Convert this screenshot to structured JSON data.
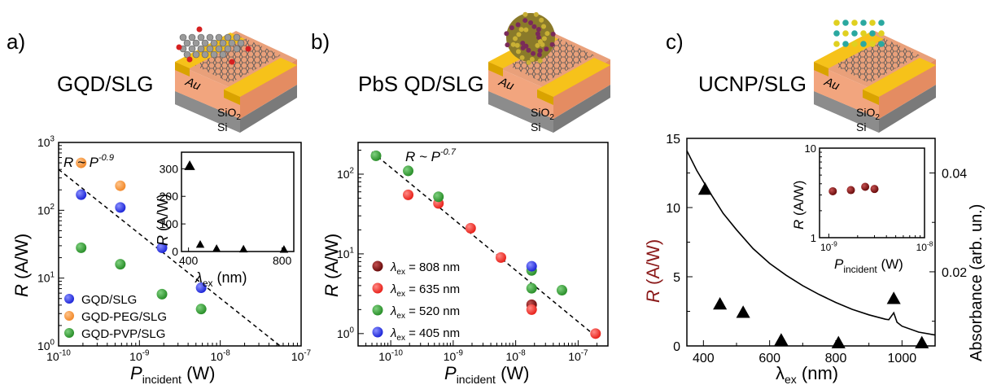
{
  "panels": [
    {
      "letter": "a)",
      "title": "GQD/SLG"
    },
    {
      "letter": "b)",
      "title": "PbS QD/SLG"
    },
    {
      "letter": "c)",
      "title": "UCNP/SLG"
    }
  ],
  "device": {
    "electrode": "Au",
    "oxide": "SiO",
    "oxide_sub": "2",
    "substrate": "Si"
  },
  "chart_data": [
    {
      "id": "a",
      "type": "scatter",
      "xscale": "log",
      "yscale": "log",
      "xlim": [
        1e-10,
        1e-07
      ],
      "ylim": [
        1,
        1000
      ],
      "xticks": [
        "10-10",
        "10-9",
        "10-8",
        "10-7"
      ],
      "yticks": [
        "10^0",
        "10^1",
        "10^2",
        "10^3"
      ],
      "xlabel": "P",
      "xlabel_sub": "incident",
      "xlabel_unit": " (W)",
      "ylabel": "R",
      "ylabel_unit": " (A/W)",
      "annotation": {
        "base": "R ~ P",
        "exp": "-0.9"
      },
      "fit_line": {
        "x": [
          1e-10,
          5.5e-08
        ],
        "y": [
          400,
          1.0
        ]
      },
      "legend_position": "bottom-left",
      "series": [
        {
          "name": "GQD/SLG",
          "color": "#1f28d8",
          "x": [
            1.9e-10,
            5.8e-10,
            1.9e-09,
            5.8e-09
          ],
          "y": [
            170,
            110,
            28,
            7.2
          ]
        },
        {
          "name": "GQD-PEG/SLG",
          "color": "#f28a2c",
          "x": [
            1.9e-10,
            5.8e-10
          ],
          "y": [
            500,
            230
          ]
        },
        {
          "name": "GQD-PVP/SLG",
          "color": "#2a8f2a",
          "x": [
            1.9e-10,
            5.8e-10,
            1.9e-09,
            5.8e-09
          ],
          "y": [
            28,
            16,
            5.8,
            3.5
          ]
        }
      ],
      "inset": {
        "type": "scatter",
        "marker": "triangle",
        "xlim": [
          370,
          850
        ],
        "ylim": [
          0,
          360
        ],
        "xticks": [
          "400",
          "800"
        ],
        "yticks": [
          "0",
          "100",
          "200",
          "300"
        ],
        "xlabel": "λ",
        "xlabel_sub": "ex",
        "xlabel_unit": " (nm)",
        "ylabel": "R (A/W)",
        "x": [
          405,
          450,
          520,
          635,
          808
        ],
        "y": [
          310,
          25,
          10,
          8,
          7
        ]
      }
    },
    {
      "id": "b",
      "type": "scatter",
      "xscale": "log",
      "yscale": "log",
      "xlim": [
        3e-11,
        3e-07
      ],
      "ylim": [
        0.7,
        250
      ],
      "xticks": [
        "10-10",
        "10-9",
        "10-8",
        "10-7"
      ],
      "yticks": [
        "10^0",
        "10^1",
        "10^2"
      ],
      "xlabel": "P",
      "xlabel_sub": "incident",
      "xlabel_unit": " (W)",
      "ylabel": "R",
      "ylabel_unit": " (A/W)",
      "annotation": {
        "base": "R ~ P",
        "exp": "-0.7"
      },
      "fit_line": {
        "x": [
          5e-11,
          2e-07
        ],
        "y": [
          190,
          0.9
        ]
      },
      "legend_position": "bottom-left",
      "series": [
        {
          "name": "λex = 808 nm",
          "lam": "808",
          "color": "#7a1010",
          "x": [
            1.8e-08
          ],
          "y": [
            2.3
          ]
        },
        {
          "name": "λex = 635 nm",
          "lam": "635",
          "color": "#e8231c",
          "x": [
            1.9e-10,
            5.8e-10,
            1.9e-09,
            5.8e-09,
            1.8e-08,
            1.9e-07
          ],
          "y": [
            55,
            43,
            21,
            9,
            2,
            1
          ]
        },
        {
          "name": "λex = 520 nm",
          "lam": "520",
          "color": "#2a8f2a",
          "x": [
            5.8e-11,
            1.9e-10,
            5.8e-10,
            1.8e-08,
            1.8e-08,
            5.5e-08
          ],
          "y": [
            170,
            110,
            52,
            6.2,
            3.7,
            3.5
          ]
        },
        {
          "name": "λex = 405 nm",
          "lam": "405",
          "color": "#1f28d8",
          "x": [
            1.8e-08
          ],
          "y": [
            7
          ]
        }
      ]
    },
    {
      "id": "c",
      "type": "scatter+line",
      "xlim": [
        350,
        1100
      ],
      "ylim": [
        0,
        15
      ],
      "xticks": [
        "400",
        "600",
        "800",
        "1000"
      ],
      "yticks": [
        "0",
        "5",
        "10",
        "15"
      ],
      "y2lim": [
        0.005,
        0.047
      ],
      "y2ticks": [
        "0.02",
        "0.04"
      ],
      "xlabel": "λ",
      "xlabel_sub": "ex",
      "xlabel_unit": " (nm)",
      "ylabel": "R (A/W)",
      "ylabel_color": "#8b1a1a",
      "y2label": "Absorbance (arb. un.)",
      "triangles": {
        "x": [
          405,
          450,
          520,
          635,
          808,
          975,
          1060
        ],
        "y": [
          11.3,
          3.0,
          2.4,
          0.4,
          0.2,
          3.4,
          0.2
        ]
      },
      "absorbance": {
        "x": [
          350,
          380,
          420,
          460,
          500,
          550,
          600,
          650,
          700,
          750,
          800,
          850,
          900,
          950,
          960,
          975,
          985,
          1000,
          1050,
          1100
        ],
        "y": [
          0.0445,
          0.0405,
          0.036,
          0.0318,
          0.0285,
          0.0247,
          0.0217,
          0.0193,
          0.0172,
          0.0154,
          0.0138,
          0.0124,
          0.0113,
          0.0104,
          0.0103,
          0.0117,
          0.0098,
          0.009,
          0.0078,
          0.0072
        ]
      },
      "inset": {
        "type": "scatter",
        "yscale": "log",
        "xscale": "log",
        "xlim": [
          8e-10,
          1e-08
        ],
        "ylim": [
          1,
          10
        ],
        "xticks": [
          "10-9",
          "10-8"
        ],
        "yticks": [
          "1",
          "10"
        ],
        "xlabel": "P",
        "xlabel_sub": "incident",
        "xlabel_unit": " (W)",
        "ylabel": "R (A/W)",
        "color": "#7a1010",
        "x": [
          1.1e-09,
          1.7e-09,
          2.4e-09,
          3e-09
        ],
        "y": [
          3.3,
          3.4,
          3.7,
          3.5
        ]
      }
    }
  ]
}
